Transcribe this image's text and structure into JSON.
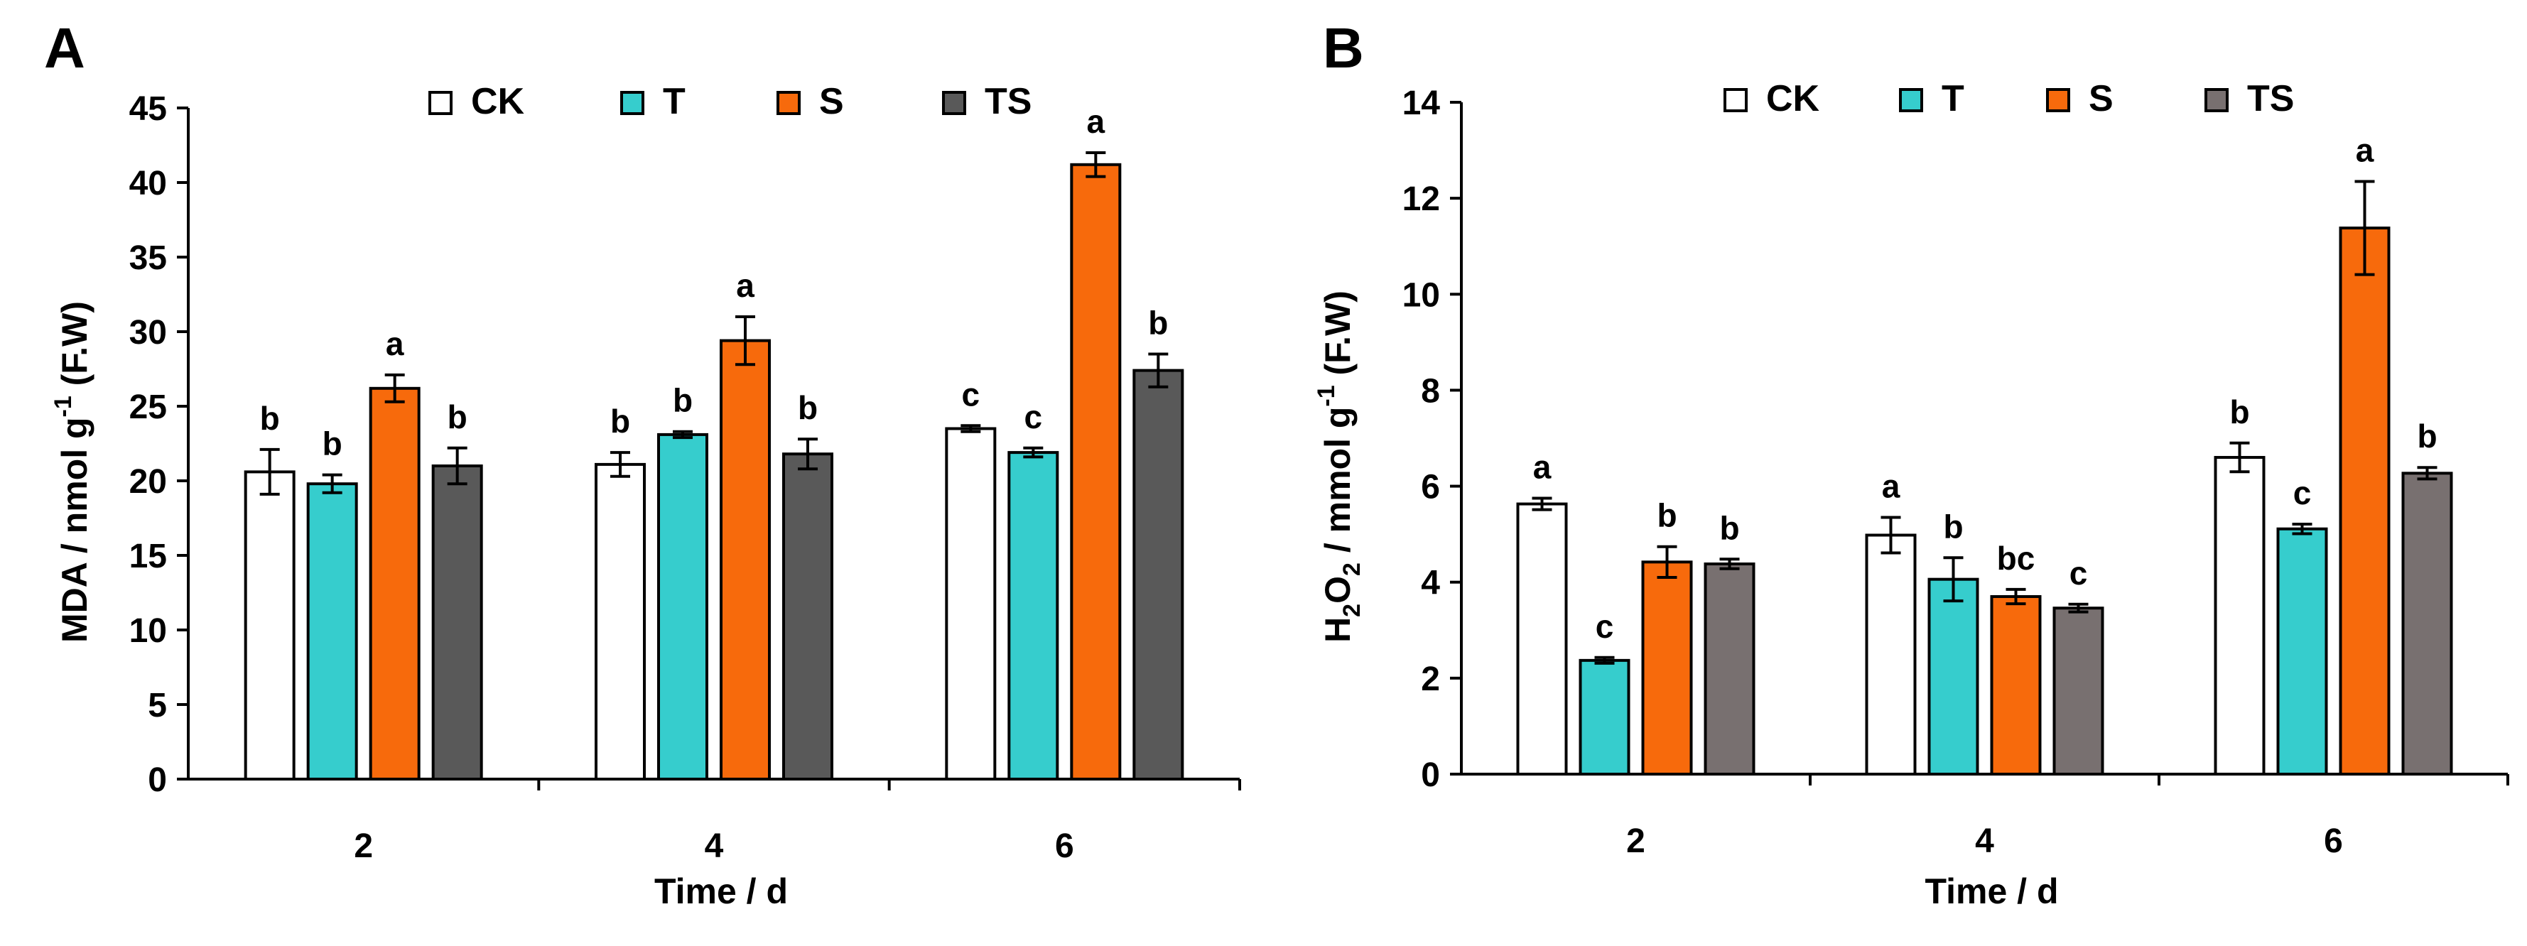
{
  "figure": {
    "colors": {
      "CK": "#ffffff",
      "T": "#36cdcd",
      "S": "#f76a0c",
      "TS_A": "#595959",
      "TS_B": "#787070"
    }
  },
  "chart_data": [
    {
      "panel": "A",
      "type": "bar",
      "xlabel": "Time / d",
      "ylabel_parts": [
        "MDA / nmol g",
        "-1",
        " (F.W)"
      ],
      "ylim": [
        0,
        45
      ],
      "yticks": [
        0,
        5,
        10,
        15,
        20,
        25,
        30,
        35,
        40,
        45
      ],
      "categories": [
        "2",
        "4",
        "6"
      ],
      "legend": [
        "CK",
        "T",
        "S",
        "TS"
      ],
      "legend_position": "top",
      "grid": false,
      "series": [
        {
          "name": "CK",
          "values": [
            20.6,
            21.1,
            23.5
          ],
          "errors": [
            1.5,
            0.8,
            0.2
          ],
          "labels": [
            "b",
            "b",
            "c"
          ]
        },
        {
          "name": "T",
          "values": [
            19.8,
            23.1,
            21.9
          ],
          "errors": [
            0.6,
            0.2,
            0.3
          ],
          "labels": [
            "b",
            "b",
            "c"
          ]
        },
        {
          "name": "S",
          "values": [
            26.2,
            29.4,
            41.2
          ],
          "errors": [
            0.9,
            1.6,
            0.8
          ],
          "labels": [
            "a",
            "a",
            "a"
          ]
        },
        {
          "name": "TS",
          "values": [
            21.0,
            21.8,
            27.4
          ],
          "errors": [
            1.2,
            1.0,
            1.1
          ],
          "labels": [
            "b",
            "b",
            "b"
          ]
        }
      ]
    },
    {
      "panel": "B",
      "type": "bar",
      "xlabel": "Time / d",
      "ylabel_parts": [
        "H",
        "2",
        "O",
        "2",
        " / mmol g",
        "-1",
        " (F.W)"
      ],
      "ylim": [
        0,
        14
      ],
      "yticks": [
        0,
        2,
        4,
        6,
        8,
        10,
        12,
        14
      ],
      "categories": [
        "2",
        "4",
        "6"
      ],
      "legend": [
        "CK",
        "T",
        "S",
        "TS"
      ],
      "legend_position": "top",
      "grid": false,
      "series": [
        {
          "name": "CK",
          "values": [
            5.63,
            4.98,
            6.6
          ],
          "errors": [
            0.12,
            0.37,
            0.3
          ],
          "labels": [
            "a",
            "a",
            "b"
          ]
        },
        {
          "name": "T",
          "values": [
            2.37,
            4.06,
            5.11
          ],
          "errors": [
            0.06,
            0.45,
            0.1
          ],
          "labels": [
            "c",
            "b",
            "c"
          ]
        },
        {
          "name": "S",
          "values": [
            4.42,
            3.7,
            11.38
          ],
          "errors": [
            0.32,
            0.15,
            0.97
          ],
          "labels": [
            "b",
            "bc",
            "a"
          ]
        },
        {
          "name": "TS",
          "values": [
            4.38,
            3.46,
            6.27
          ],
          "errors": [
            0.1,
            0.08,
            0.12
          ],
          "labels": [
            "b",
            "c",
            "b"
          ]
        }
      ]
    }
  ]
}
